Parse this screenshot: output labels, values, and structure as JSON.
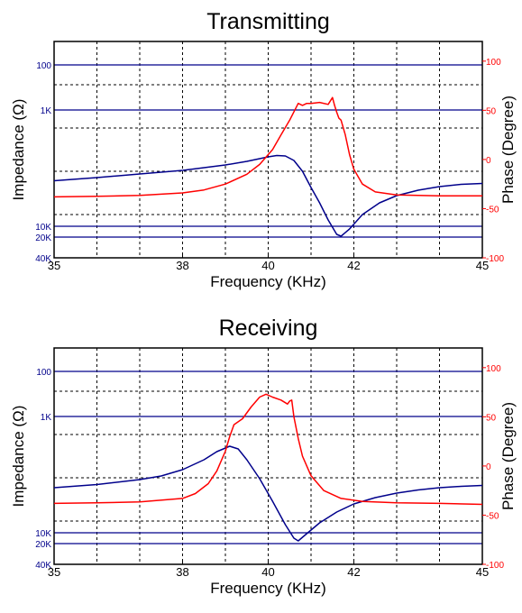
{
  "chart_data": [
    {
      "type": "line",
      "title": "Transmitting",
      "xlabel": "Frequency (KHz)",
      "ylabel_left": "Impedance (Ω)",
      "ylabel_right": "Phase (Degree)",
      "xlim": [
        35,
        45
      ],
      "x_ticks": [
        "35",
        "38",
        "40",
        "42",
        "45"
      ],
      "left_ticks": [
        "100",
        "1K",
        "10K",
        "20K",
        "40K"
      ],
      "right_ticks": [
        "100",
        "50",
        "0",
        "-50",
        "-100"
      ],
      "right_ylim": [
        -100,
        120
      ],
      "grid": true,
      "colors": {
        "impedance": "#00008b",
        "phase": "#ff0000"
      },
      "series": [
        {
          "axis": "left",
          "x": [
            35,
            36,
            37,
            38,
            38.5,
            39,
            39.5,
            40,
            40.2,
            40.4,
            40.6,
            40.8,
            41,
            41.2,
            41.4,
            41.6,
            41.7,
            41.9,
            42.2,
            42.6,
            43,
            43.5,
            44,
            44.5,
            45
          ],
          "y": [
            15.45,
            15.1,
            14.7,
            14.3,
            14.0,
            13.7,
            13.3,
            12.8,
            12.65,
            12.7,
            13.2,
            14.4,
            16.2,
            17.9,
            19.8,
            21.4,
            21.6,
            20.8,
            19.2,
            17.9,
            17.1,
            16.5,
            16.1,
            15.85,
            15.75
          ]
        },
        {
          "axis": "right",
          "x": [
            35,
            36,
            37,
            38,
            38.5,
            39,
            39.5,
            39.8,
            40.1,
            40.3,
            40.5,
            40.7,
            40.8,
            40.9,
            41.0,
            41.2,
            41.4,
            41.5,
            41.55,
            41.6,
            41.65,
            41.7,
            41.8,
            41.9,
            42.0,
            42.2,
            42.5,
            43,
            44,
            45
          ],
          "y": [
            -38,
            -37.5,
            -36.5,
            -34,
            -31,
            -25,
            -15,
            -5,
            10,
            25,
            40,
            57,
            55,
            57,
            57,
            58,
            56,
            63,
            55,
            48,
            42,
            40,
            25,
            5,
            -10,
            -25,
            -33,
            -36,
            -37,
            -37
          ]
        }
      ]
    },
    {
      "type": "line",
      "title": "Receiving",
      "xlabel": "Frequency (KHz)",
      "ylabel_left": "Impedance (Ω)",
      "ylabel_right": "Phase (Degree)",
      "xlim": [
        35,
        45
      ],
      "x_ticks": [
        "35",
        "38",
        "40",
        "42",
        "45"
      ],
      "left_ticks": [
        "100",
        "1K",
        "10K",
        "20K",
        "40K"
      ],
      "right_ticks": [
        "100",
        "50",
        "0",
        "-50",
        "-100"
      ],
      "right_ylim": [
        -100,
        120
      ],
      "grid": true,
      "colors": {
        "impedance": "#00008b",
        "phase": "#ff0000"
      },
      "series": [
        {
          "axis": "left",
          "x": [
            35,
            36,
            37,
            37.5,
            38,
            38.5,
            38.8,
            39.1,
            39.3,
            39.5,
            39.8,
            40.1,
            40.4,
            40.6,
            40.7,
            40.9,
            41.2,
            41.6,
            42,
            42.5,
            43,
            43.5,
            44,
            44.5,
            45
          ],
          "y": [
            15.5,
            15.15,
            14.6,
            14.2,
            13.5,
            12.4,
            11.5,
            10.9,
            11.2,
            12.4,
            14.5,
            17.0,
            19.6,
            21.1,
            21.4,
            20.6,
            19.4,
            18.2,
            17.3,
            16.6,
            16.1,
            15.75,
            15.5,
            15.35,
            15.25
          ]
        },
        {
          "axis": "right",
          "x": [
            35,
            36,
            37,
            38,
            38.3,
            38.6,
            38.8,
            39.0,
            39.1,
            39.2,
            39.4,
            39.6,
            39.8,
            39.95,
            40.1,
            40.3,
            40.45,
            40.5,
            40.55,
            40.6,
            40.7,
            40.8,
            41.0,
            41.3,
            41.7,
            42.2,
            43,
            44,
            45
          ],
          "y": [
            -38,
            -37.5,
            -36.5,
            -33,
            -28,
            -18,
            -5,
            15,
            30,
            42,
            48,
            60,
            70,
            73,
            70,
            67,
            63,
            66,
            67,
            50,
            28,
            10,
            -10,
            -25,
            -33,
            -36,
            -37.5,
            -38,
            -39
          ]
        }
      ]
    }
  ]
}
